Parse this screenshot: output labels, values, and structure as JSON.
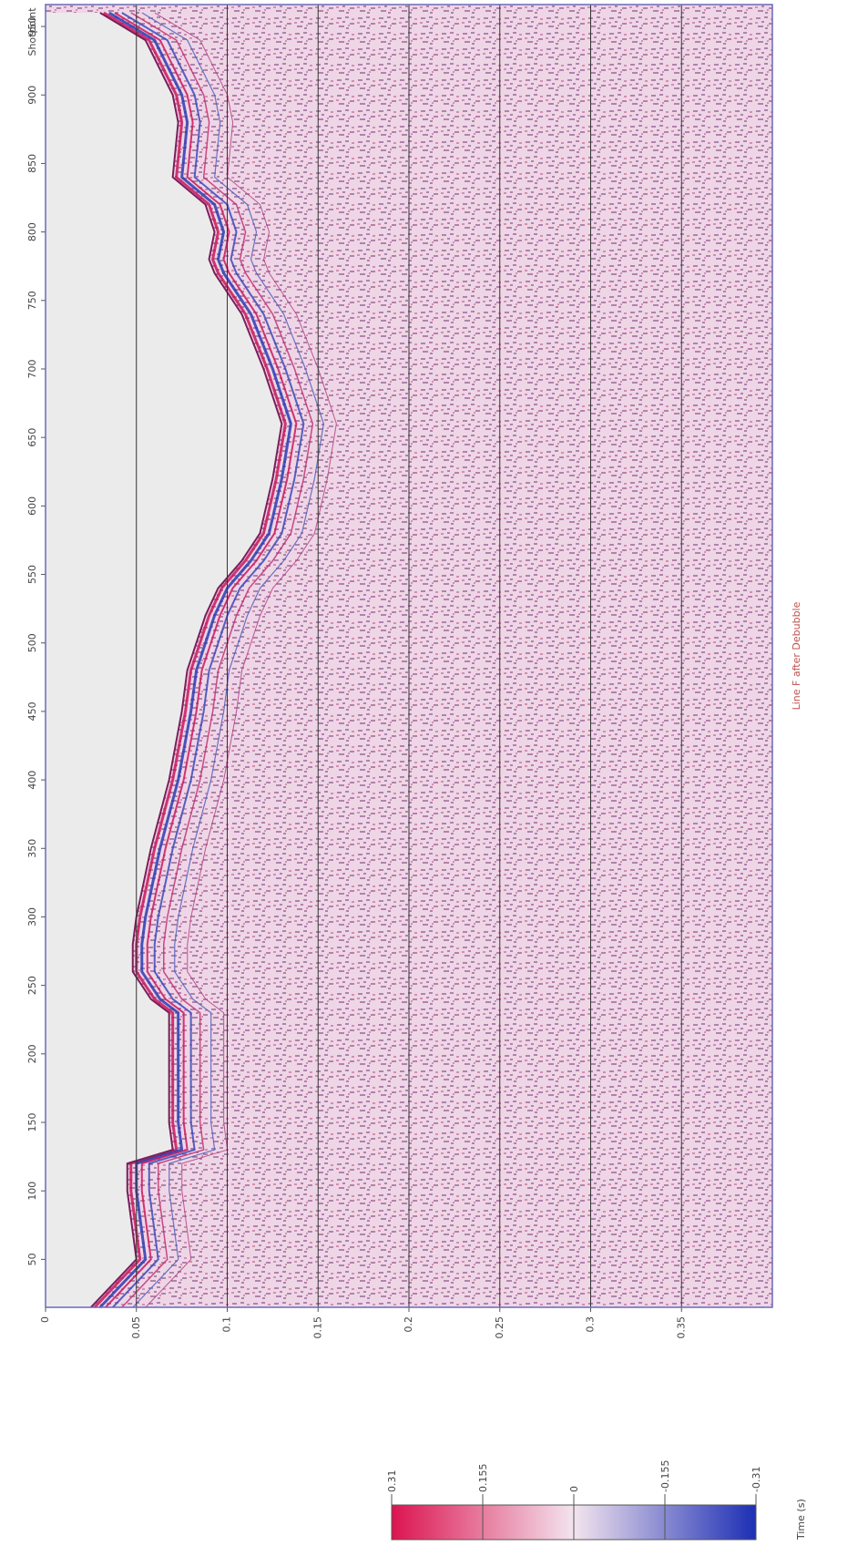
{
  "chart_data": {
    "type": "seismic",
    "title": "Line F after Debubble",
    "xlabel": "Shotpoint",
    "ylabel": "Time (s)",
    "xlim": [
      15,
      966
    ],
    "xticks": [
      50,
      100,
      150,
      200,
      250,
      300,
      350,
      400,
      450,
      500,
      550,
      600,
      650,
      700,
      750,
      800,
      850,
      900,
      950
    ],
    "ylim": [
      0,
      0.4
    ],
    "yticks": [
      0,
      0.05,
      0.1,
      0.15,
      0.2,
      0.25,
      0.3,
      0.35
    ],
    "grid": true,
    "x": [
      15,
      50,
      100,
      120,
      130,
      150,
      230,
      240,
      260,
      280,
      300,
      350,
      400,
      450,
      480,
      520,
      540,
      560,
      580,
      620,
      660,
      700,
      740,
      770,
      780,
      800,
      820,
      840,
      880,
      900,
      940,
      960
    ],
    "values": [
      0.025,
      0.05,
      0.045,
      0.045,
      0.07,
      0.068,
      0.068,
      0.058,
      0.048,
      0.048,
      0.05,
      0.058,
      0.068,
      0.075,
      0.078,
      0.088,
      0.095,
      0.108,
      0.118,
      0.125,
      0.13,
      0.12,
      0.108,
      0.093,
      0.09,
      0.093,
      0.088,
      0.07,
      0.073,
      0.07,
      0.055,
      0.03
    ],
    "colorbar": {
      "lim": [
        0.31,
        -0.31
      ],
      "ticks": [
        0.31,
        0.155,
        0,
        -0.155,
        -0.31
      ],
      "colors": [
        "#dc1450",
        "#f3e4ee",
        "#1c2fb4"
      ]
    },
    "title_color": "#c0504d"
  }
}
